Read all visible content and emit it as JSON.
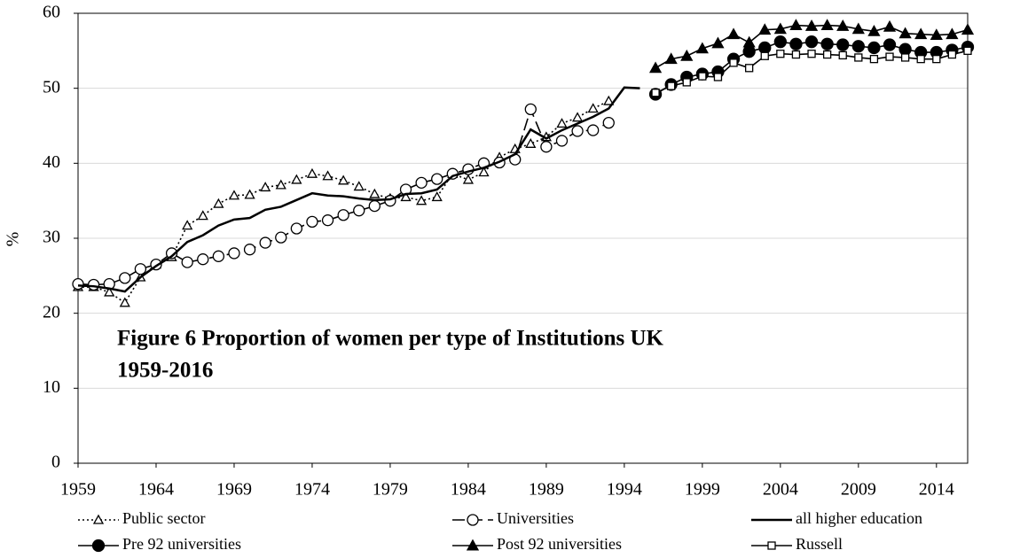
{
  "chart_data": {
    "type": "line",
    "annotation": [
      "Figure 6 Proportion of women per type of Institutions UK",
      "1959-2016"
    ],
    "y_label": "%",
    "x": [
      1959,
      1960,
      1961,
      1962,
      1963,
      1964,
      1965,
      1966,
      1967,
      1968,
      1969,
      1970,
      1971,
      1972,
      1973,
      1974,
      1975,
      1976,
      1977,
      1978,
      1979,
      1980,
      1981,
      1982,
      1983,
      1984,
      1985,
      1986,
      1987,
      1988,
      1989,
      1990,
      1991,
      1992,
      1993,
      1994,
      1995,
      1996,
      1997,
      1998,
      1999,
      2000,
      2001,
      2002,
      2003,
      2004,
      2005,
      2006,
      2007,
      2008,
      2009,
      2010,
      2011,
      2012,
      2013,
      2014,
      2015,
      2016
    ],
    "xlim": [
      1959,
      2016
    ],
    "xticks": [
      1959,
      1964,
      1969,
      1974,
      1979,
      1984,
      1989,
      1994,
      1999,
      2004,
      2009,
      2014
    ],
    "ylim": [
      0,
      60
    ],
    "yticks": [
      0,
      10,
      20,
      30,
      40,
      50,
      60
    ],
    "grid": true,
    "series": [
      {
        "name": "Public sector",
        "color": "#000000",
        "dash": "dotted",
        "marker": "triangle-open",
        "values": [
          23.5,
          23.5,
          22.8,
          21.4,
          24.8,
          26.5,
          27.5,
          31.7,
          33,
          34.6,
          35.7,
          35.8,
          36.8,
          37.1,
          37.8,
          38.6,
          38.3,
          37.7,
          36.9,
          35.9,
          35.3,
          35.5,
          35,
          35.5,
          38.6,
          37.8,
          38.8,
          40.8,
          41.9,
          42.6,
          43.5,
          45.3,
          46.1,
          47.3,
          48.3,
          null,
          null,
          null,
          null,
          null,
          null,
          null,
          null,
          null,
          null,
          null,
          null,
          null,
          null,
          null,
          null,
          null,
          null,
          null,
          null,
          null,
          null,
          null
        ]
      },
      {
        "name": "Universities",
        "color": "#000000",
        "dash": "dashed",
        "marker": "circle-open",
        "values": [
          23.9,
          23.8,
          23.9,
          24.7,
          25.9,
          26.5,
          28,
          26.8,
          27.2,
          27.6,
          28,
          28.5,
          29.4,
          30.1,
          31.3,
          32.2,
          32.4,
          33.1,
          33.7,
          34.3,
          35,
          36.5,
          37.4,
          37.9,
          38.6,
          39.2,
          40,
          40.1,
          40.5,
          47.2,
          42.2,
          43,
          44.3,
          44.4,
          45.4,
          null,
          null,
          null,
          null,
          null,
          null,
          null,
          null,
          null,
          null,
          null,
          null,
          null,
          null,
          null,
          null,
          null,
          null,
          null,
          null,
          null,
          null,
          null
        ]
      },
      {
        "name": "all higher education",
        "color": "#000000",
        "dash": "solid",
        "marker": "none",
        "values": [
          23.7,
          23.6,
          23.3,
          22.9,
          24.8,
          26.3,
          27.6,
          29.5,
          30.4,
          31.7,
          32.5,
          32.7,
          33.8,
          34.2,
          35.1,
          36,
          35.7,
          35.6,
          35.3,
          35.1,
          35.2,
          35.9,
          36,
          36.5,
          38.3,
          38.9,
          39.4,
          40.2,
          41.2,
          44.5,
          43.3,
          44.4,
          45.3,
          46.2,
          47.3,
          50.1,
          50,
          null,
          null,
          null,
          null,
          null,
          null,
          null,
          null,
          null,
          null,
          null,
          null,
          null,
          null,
          null,
          null,
          null,
          null,
          null,
          null,
          null
        ]
      },
      {
        "name": "Pre 92 universities",
        "color": "#000000",
        "dash": "solid",
        "marker": "circle",
        "values": [
          null,
          null,
          null,
          null,
          null,
          null,
          null,
          null,
          null,
          null,
          null,
          null,
          null,
          null,
          null,
          null,
          null,
          null,
          null,
          null,
          null,
          null,
          null,
          null,
          null,
          null,
          null,
          null,
          null,
          null,
          null,
          null,
          null,
          null,
          null,
          null,
          null,
          49.2,
          50.5,
          51.5,
          51.9,
          52.2,
          53.9,
          54.9,
          55.4,
          56.2,
          55.9,
          56.2,
          55.9,
          55.8,
          55.6,
          55.4,
          55.8,
          55.2,
          54.8,
          54.8,
          55.1,
          55.5
        ]
      },
      {
        "name": "Post 92 universities",
        "color": "#000000",
        "dash": "solid",
        "marker": "triangle",
        "values": [
          null,
          null,
          null,
          null,
          null,
          null,
          null,
          null,
          null,
          null,
          null,
          null,
          null,
          null,
          null,
          null,
          null,
          null,
          null,
          null,
          null,
          null,
          null,
          null,
          null,
          null,
          null,
          null,
          null,
          null,
          null,
          null,
          null,
          null,
          null,
          null,
          null,
          52.7,
          53.9,
          54.3,
          55.3,
          56,
          57.2,
          56.1,
          57.8,
          57.9,
          58.4,
          58.3,
          58.4,
          58.3,
          57.9,
          57.6,
          58.2,
          57.3,
          57.2,
          57.1,
          57.2,
          57.8
        ]
      },
      {
        "name": "Russell",
        "color": "#000000",
        "dash": "solid",
        "marker": "square-open",
        "values": [
          null,
          null,
          null,
          null,
          null,
          null,
          null,
          null,
          null,
          null,
          null,
          null,
          null,
          null,
          null,
          null,
          null,
          null,
          null,
          null,
          null,
          null,
          null,
          null,
          null,
          null,
          null,
          null,
          null,
          null,
          null,
          null,
          null,
          null,
          null,
          null,
          null,
          49.4,
          50.3,
          50.8,
          51.6,
          51.5,
          53.4,
          52.7,
          54.3,
          54.6,
          54.5,
          54.6,
          54.5,
          54.4,
          54.1,
          53.9,
          54.2,
          54.1,
          53.9,
          53.9,
          54.5,
          55
        ]
      }
    ]
  }
}
